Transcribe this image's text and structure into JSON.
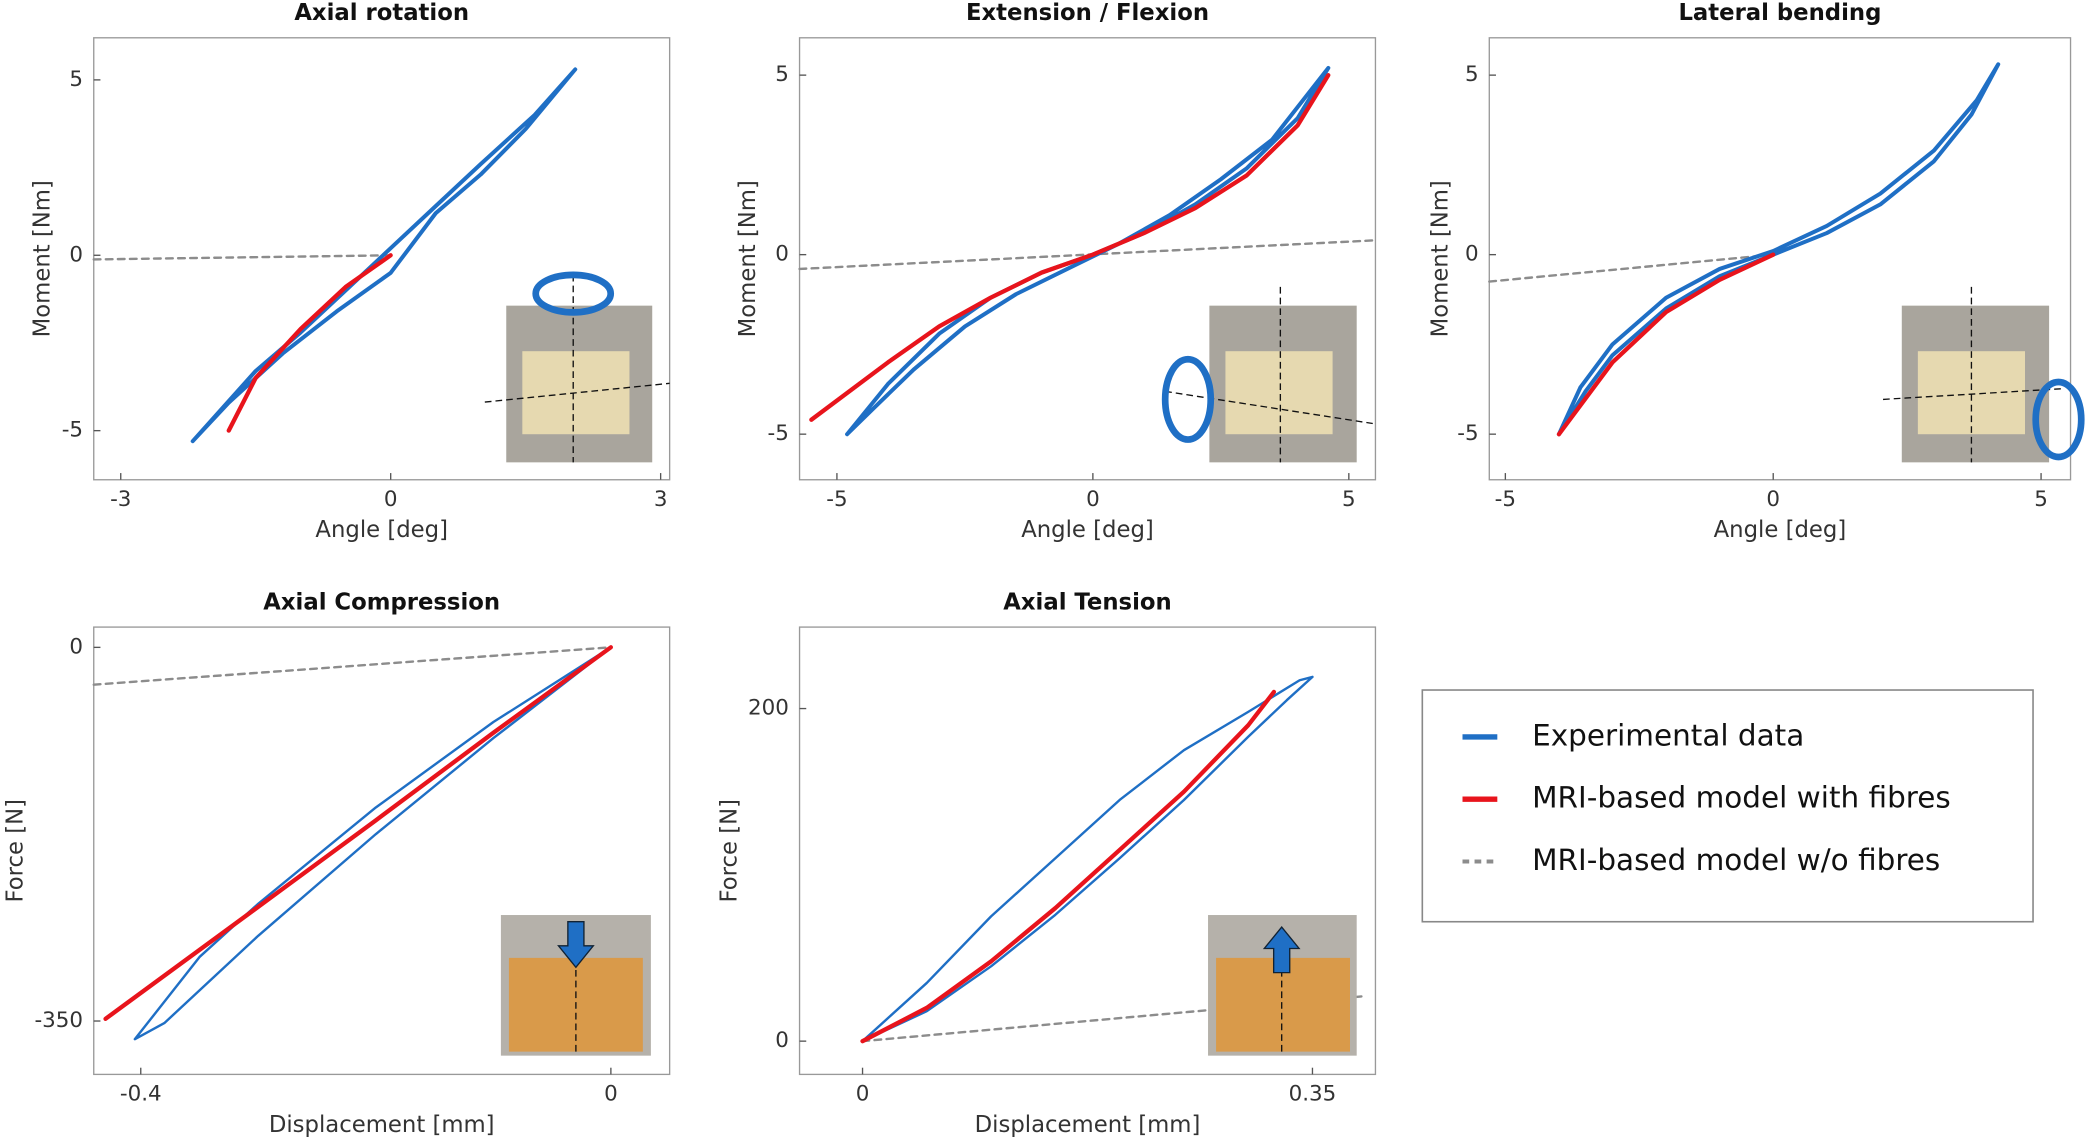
{
  "legend": [
    {
      "name": "Experimental data",
      "color": "#1f6fc5",
      "dash": false
    },
    {
      "name": "MRI-based model with fibres",
      "color": "#e8141c",
      "dash": false
    },
    {
      "name": "MRI-based model w/o fibres",
      "color": "#8c8c8c",
      "dash": true
    }
  ],
  "chart_data": [
    {
      "type": "line",
      "title": "Axial rotation",
      "xlabel": "Angle [deg]",
      "ylabel": "Moment [Nm]",
      "xlim": [
        -3.3,
        3.1
      ],
      "ylim": [
        -6.4,
        6.2
      ],
      "xticks": [
        -3,
        0,
        3
      ],
      "yticks": [
        -5,
        0,
        5
      ],
      "series": [
        {
          "x": [
            0,
            0.5,
            1.0,
            1.5,
            2.05,
            1.6,
            1.0,
            0.5,
            0,
            -0.5,
            -1.0,
            -1.5,
            -2.2,
            -1.8,
            -1.2,
            -0.6,
            0
          ],
          "values": [
            -0.5,
            1.2,
            2.3,
            3.6,
            5.3,
            4.0,
            2.6,
            1.4,
            0.2,
            -1.0,
            -2.2,
            -3.3,
            -5.3,
            -4.2,
            -2.8,
            -1.6,
            -0.5
          ]
        },
        {
          "x": [
            0,
            -0.5,
            -1.0,
            -1.5,
            -1.8
          ],
          "values": [
            0,
            -0.9,
            -2.1,
            -3.5,
            -5.0
          ]
        },
        {
          "x": [
            -3.3,
            0
          ],
          "values": [
            -0.12,
            0
          ]
        }
      ]
    },
    {
      "type": "line",
      "title": "Extension / Flexion",
      "xlabel": "Angle [deg]",
      "ylabel": "Moment [Nm]",
      "xlim": [
        -5.73,
        5.52
      ],
      "ylim": [
        -6.27,
        6.04
      ],
      "xticks": [
        -5,
        0,
        5
      ],
      "yticks": [
        -5,
        0,
        5
      ],
      "series": [
        {
          "x": [
            -4.8,
            -4,
            -3,
            -2,
            -1,
            0,
            1,
            2,
            3,
            4,
            4.6,
            3.5,
            2.5,
            1.5,
            0.5,
            -0.5,
            -1.5,
            -2.5,
            -3.5,
            -4.3,
            -4.8
          ],
          "values": [
            -5,
            -3.6,
            -2.2,
            -1.2,
            -0.5,
            0,
            0.6,
            1.4,
            2.4,
            3.8,
            5.2,
            3.2,
            2.1,
            1.1,
            0.3,
            -0.4,
            -1.1,
            -2.0,
            -3.2,
            -4.3,
            -5
          ]
        },
        {
          "x": [
            -5.5,
            -4,
            -3,
            -2,
            -1,
            0,
            1,
            2,
            3,
            4,
            4.6
          ],
          "values": [
            -4.6,
            -3.0,
            -2.0,
            -1.2,
            -0.5,
            0,
            0.6,
            1.3,
            2.2,
            3.6,
            5.0
          ]
        },
        {
          "x": [
            -5.73,
            5.52
          ],
          "values": [
            -0.4,
            0.4
          ]
        }
      ]
    },
    {
      "type": "line",
      "title": "Lateral bending",
      "xlabel": "Angle [deg]",
      "ylabel": "Moment [Nm]",
      "xlim": [
        -5.3,
        5.55
      ],
      "ylim": [
        -6.27,
        6.04
      ],
      "xticks": [
        -5,
        0,
        5
      ],
      "yticks": [
        -5,
        0,
        5
      ],
      "series": [
        {
          "x": [
            -4,
            -3.5,
            -3,
            -2,
            -1,
            0,
            1,
            2,
            3,
            3.7,
            4.2,
            3.8,
            3,
            2,
            1,
            0,
            -1,
            -2,
            -3,
            -3.6,
            -4
          ],
          "values": [
            -5,
            -3.8,
            -2.8,
            -1.5,
            -0.6,
            0,
            0.6,
            1.4,
            2.6,
            3.9,
            5.3,
            4.3,
            2.9,
            1.7,
            0.8,
            0.1,
            -0.4,
            -1.2,
            -2.5,
            -3.7,
            -5
          ]
        },
        {
          "x": [
            -4,
            -3,
            -2,
            -1,
            0
          ],
          "values": [
            -5,
            -3.0,
            -1.6,
            -0.7,
            0
          ]
        },
        {
          "x": [
            -5.3,
            0
          ],
          "values": [
            -0.75,
            0
          ]
        }
      ]
    },
    {
      "type": "line",
      "title": "Axial Compression",
      "xlabel": "Displacement [mm]",
      "ylabel": "Force [N]",
      "xlim": [
        -0.44,
        0.05
      ],
      "ylim": [
        -400,
        19
      ],
      "xticks": [
        -0.4,
        0
      ],
      "yticks": [
        -350,
        0
      ],
      "series": [
        {
          "x": [
            0,
            -0.1,
            -0.2,
            -0.3,
            -0.35,
            -0.405,
            -0.38,
            -0.3,
            -0.2,
            -0.1,
            0
          ],
          "values": [
            0,
            -70,
            -150,
            -240,
            -290,
            -367,
            -352,
            -270,
            -175,
            -85,
            0
          ]
        },
        {
          "x": [
            -0.43,
            -0.3,
            -0.2,
            -0.1,
            0
          ],
          "values": [
            -348,
            -243,
            -162,
            -80,
            0
          ]
        },
        {
          "x": [
            -0.44,
            0
          ],
          "values": [
            -35,
            0
          ]
        }
      ]
    },
    {
      "type": "line",
      "title": "Axial Tension",
      "xlabel": "Displacement [mm]",
      "ylabel": "Force [N]",
      "xlim": [
        -0.049,
        0.399
      ],
      "ylim": [
        -20,
        249
      ],
      "xticks": [
        0,
        0.35
      ],
      "yticks": [
        0,
        200
      ],
      "series": [
        {
          "x": [
            0,
            0.05,
            0.1,
            0.15,
            0.2,
            0.25,
            0.3,
            0.34,
            0.35,
            0.33,
            0.3,
            0.25,
            0.2,
            0.15,
            0.1,
            0.05,
            0
          ],
          "values": [
            0,
            35,
            75,
            110,
            145,
            175,
            198,
            217,
            219,
            205,
            183,
            145,
            110,
            76,
            45,
            18,
            0
          ]
        },
        {
          "x": [
            0,
            0.05,
            0.1,
            0.15,
            0.2,
            0.25,
            0.3,
            0.32
          ],
          "values": [
            0,
            20,
            48,
            80,
            115,
            150,
            190,
            210
          ]
        },
        {
          "x": [
            0,
            0.39
          ],
          "values": [
            0,
            27
          ]
        }
      ]
    }
  ]
}
